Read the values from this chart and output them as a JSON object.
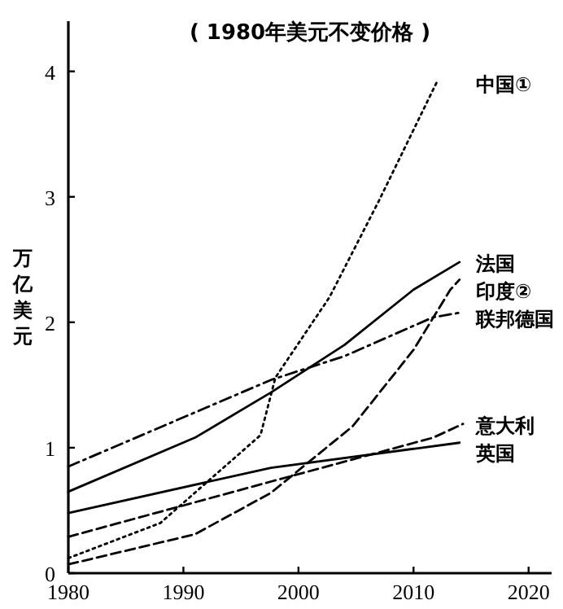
{
  "chart_data": {
    "type": "line",
    "title": "( 1980年美元不变价格 )",
    "ylabel": "万亿美元",
    "xlim": [
      1980,
      2022
    ],
    "ylim": [
      0,
      4.4
    ],
    "xticks": [
      1980,
      1990,
      2000,
      2010,
      2020
    ],
    "yticks": [
      0,
      1,
      2,
      3,
      4
    ],
    "grid": false,
    "series": [
      {
        "name": "中国①",
        "color": "#000000",
        "line_style": "dotted",
        "x": [
          1980,
          1988,
          1996.7,
          1998,
          2002.7,
          2007,
          2012
        ],
        "values": [
          0.12,
          0.4,
          1.1,
          1.56,
          2.2,
          2.97,
          3.91
        ]
      },
      {
        "name": "法国",
        "color": "#000000",
        "line_style": "solid",
        "x": [
          1980,
          1991,
          1997.6,
          2004,
          2010,
          2014
        ],
        "values": [
          0.65,
          1.08,
          1.44,
          1.82,
          2.26,
          2.48
        ]
      },
      {
        "name": "印度②",
        "color": "#000000",
        "line_style": "dashed",
        "x": [
          1980,
          1991,
          1997.6,
          2004.7,
          2010,
          2013.2,
          2014
        ],
        "values": [
          0.07,
          0.31,
          0.64,
          1.17,
          1.78,
          2.26,
          2.34
        ]
      },
      {
        "name": "联邦德国",
        "color": "#000000",
        "line_style": "dashdot",
        "x": [
          1980,
          1997.6,
          2004,
          2011.7,
          2014.3
        ],
        "values": [
          0.85,
          1.54,
          1.73,
          2.04,
          2.08
        ]
      },
      {
        "name": "意大利",
        "color": "#000000",
        "line_style": "dashed",
        "x": [
          1980,
          1997.6,
          2011.7,
          2014.3
        ],
        "values": [
          0.29,
          0.73,
          1.08,
          1.19
        ]
      },
      {
        "name": "英国",
        "color": "#000000",
        "line_style": "solid",
        "x": [
          1980,
          1997.6,
          2014
        ],
        "values": [
          0.48,
          0.84,
          1.04
        ]
      }
    ]
  }
}
